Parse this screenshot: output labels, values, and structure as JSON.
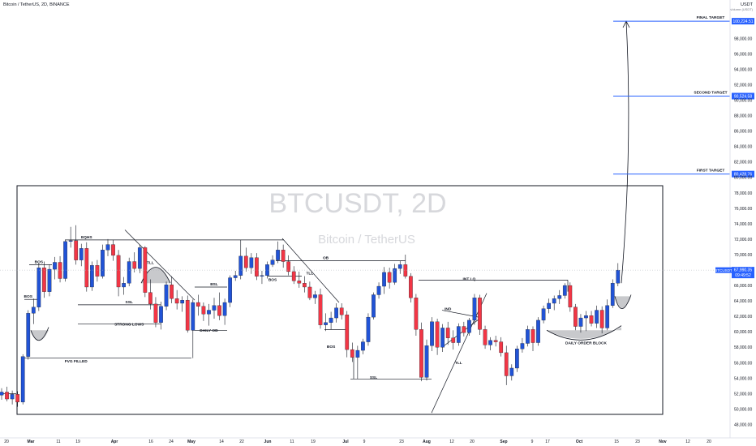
{
  "header": {
    "symbol_title": "Bitcoin / TetherUS, 2D, BINANCE"
  },
  "currency": {
    "label": "USDT",
    "sublabel": "Volume (USDT)"
  },
  "watermark": {
    "main": "BTCUSDT, 2D",
    "sub": "Bitcoin / TetherUS"
  },
  "chart_data": {
    "type": "candlestick",
    "title": "Bitcoin / TetherUS, 2D, BINANCE",
    "ylim": [
      47000,
      101500
    ],
    "y_ticks": [
      48000,
      50000,
      52000,
      54000,
      56000,
      58000,
      60000,
      62000,
      64000,
      66000,
      68000,
      70000,
      72000,
      74000,
      76000,
      78000,
      80000,
      82000,
      84000,
      86000,
      88000,
      90000,
      92000,
      94000,
      96000,
      98000
    ],
    "y_tick_labels": [
      "48,000.00",
      "50,000.00",
      "52,000.00",
      "54,000.00",
      "56,000.00",
      "58,000.00",
      "60,000.00",
      "62,000.00",
      "64,000.00",
      "66,000.00",
      "68,000.00",
      "70,000.00",
      "72,000.00",
      "74,000.00",
      "76,000.00",
      "78,000.00",
      "80,000.00",
      "82,000.00",
      "84,000.00",
      "86,000.00",
      "88,000.00",
      "90,000.00",
      "92,000.00",
      "94,000.00",
      "96,000.00",
      "98,000.00"
    ],
    "x_ticks": [
      "20",
      "Mar",
      "11",
      "19",
      "Apr",
      "16",
      "24",
      "May",
      "14",
      "22",
      "Jun",
      "11",
      "19",
      "Jul",
      "9",
      "23",
      "Aug",
      "12",
      "20",
      "Sep",
      "9",
      "17",
      "Oct",
      "15",
      "23",
      "Nov",
      "12",
      "20"
    ],
    "candles": [
      {
        "o": 51800,
        "h": 52700,
        "l": 51200,
        "c": 52200
      },
      {
        "o": 52200,
        "h": 52900,
        "l": 51000,
        "c": 51300
      },
      {
        "o": 51300,
        "h": 52400,
        "l": 50600,
        "c": 51900
      },
      {
        "o": 51900,
        "h": 52300,
        "l": 50300,
        "c": 50900
      },
      {
        "o": 50900,
        "h": 57100,
        "l": 50600,
        "c": 56800
      },
      {
        "o": 56800,
        "h": 62800,
        "l": 56400,
        "c": 62400
      },
      {
        "o": 62400,
        "h": 64300,
        "l": 61000,
        "c": 63200
      },
      {
        "o": 63200,
        "h": 68900,
        "l": 62700,
        "c": 68300
      },
      {
        "o": 68300,
        "h": 69100,
        "l": 64400,
        "c": 65200
      },
      {
        "o": 65200,
        "h": 68700,
        "l": 64600,
        "c": 68100
      },
      {
        "o": 68100,
        "h": 69700,
        "l": 66800,
        "c": 69000
      },
      {
        "o": 69000,
        "h": 69800,
        "l": 66400,
        "c": 66900
      },
      {
        "o": 66900,
        "h": 71900,
        "l": 66500,
        "c": 71700
      },
      {
        "o": 71700,
        "h": 73600,
        "l": 70900,
        "c": 71800
      },
      {
        "o": 71800,
        "h": 73800,
        "l": 68700,
        "c": 69300
      },
      {
        "o": 69300,
        "h": 71400,
        "l": 68500,
        "c": 70800
      },
      {
        "o": 70800,
        "h": 71600,
        "l": 65200,
        "c": 65800
      },
      {
        "o": 65800,
        "h": 69100,
        "l": 65300,
        "c": 68600
      },
      {
        "o": 68600,
        "h": 69300,
        "l": 66500,
        "c": 67200
      },
      {
        "o": 67200,
        "h": 71300,
        "l": 66900,
        "c": 70600
      },
      {
        "o": 70600,
        "h": 72000,
        "l": 69800,
        "c": 71300
      },
      {
        "o": 71300,
        "h": 71900,
        "l": 69200,
        "c": 69900
      },
      {
        "o": 69900,
        "h": 70600,
        "l": 64600,
        "c": 65800
      },
      {
        "o": 65800,
        "h": 67100,
        "l": 64800,
        "c": 66300
      },
      {
        "o": 66300,
        "h": 69600,
        "l": 65900,
        "c": 69100
      },
      {
        "o": 69100,
        "h": 70300,
        "l": 67700,
        "c": 68200
      },
      {
        "o": 68200,
        "h": 71300,
        "l": 67600,
        "c": 70900
      },
      {
        "o": 70900,
        "h": 71100,
        "l": 64500,
        "c": 65100
      },
      {
        "o": 65100,
        "h": 66800,
        "l": 62900,
        "c": 63600
      },
      {
        "o": 63600,
        "h": 64500,
        "l": 60600,
        "c": 61200
      },
      {
        "o": 61200,
        "h": 63900,
        "l": 60300,
        "c": 63300
      },
      {
        "o": 63300,
        "h": 66500,
        "l": 62800,
        "c": 66100
      },
      {
        "o": 66100,
        "h": 67200,
        "l": 63700,
        "c": 64300
      },
      {
        "o": 64300,
        "h": 65400,
        "l": 62900,
        "c": 63700
      },
      {
        "o": 63700,
        "h": 64600,
        "l": 62600,
        "c": 64100
      },
      {
        "o": 64100,
        "h": 64700,
        "l": 59900,
        "c": 60200
      },
      {
        "o": 60200,
        "h": 64200,
        "l": 56600,
        "c": 63800
      },
      {
        "o": 63800,
        "h": 64800,
        "l": 62100,
        "c": 63300
      },
      {
        "o": 63300,
        "h": 63800,
        "l": 61400,
        "c": 62300
      },
      {
        "o": 62300,
        "h": 63600,
        "l": 60800,
        "c": 62800
      },
      {
        "o": 62800,
        "h": 64400,
        "l": 61700,
        "c": 63400
      },
      {
        "o": 63400,
        "h": 65100,
        "l": 61500,
        "c": 62100
      },
      {
        "o": 62100,
        "h": 64300,
        "l": 60900,
        "c": 63800
      },
      {
        "o": 63800,
        "h": 67300,
        "l": 63200,
        "c": 67000
      },
      {
        "o": 67000,
        "h": 67900,
        "l": 66600,
        "c": 67300
      },
      {
        "o": 67300,
        "h": 71900,
        "l": 66800,
        "c": 69800
      },
      {
        "o": 69800,
        "h": 70900,
        "l": 67800,
        "c": 68300
      },
      {
        "o": 68300,
        "h": 70200,
        "l": 67500,
        "c": 69600
      },
      {
        "o": 69600,
        "h": 70200,
        "l": 66700,
        "c": 67200
      },
      {
        "o": 67200,
        "h": 67900,
        "l": 66200,
        "c": 67300
      },
      {
        "o": 67300,
        "h": 69100,
        "l": 66900,
        "c": 68700
      },
      {
        "o": 68700,
        "h": 69900,
        "l": 68400,
        "c": 69300
      },
      {
        "o": 69300,
        "h": 71700,
        "l": 68900,
        "c": 70600
      },
      {
        "o": 70600,
        "h": 71300,
        "l": 68300,
        "c": 69100
      },
      {
        "o": 69100,
        "h": 69900,
        "l": 67300,
        "c": 67800
      },
      {
        "o": 67800,
        "h": 68500,
        "l": 66200,
        "c": 66600
      },
      {
        "o": 66600,
        "h": 67800,
        "l": 65700,
        "c": 66300
      },
      {
        "o": 66300,
        "h": 67200,
        "l": 65100,
        "c": 65800
      },
      {
        "o": 65800,
        "h": 66500,
        "l": 64100,
        "c": 64400
      },
      {
        "o": 64400,
        "h": 65300,
        "l": 63600,
        "c": 64800
      },
      {
        "o": 64800,
        "h": 65600,
        "l": 60400,
        "c": 60900
      },
      {
        "o": 60900,
        "h": 62400,
        "l": 60100,
        "c": 61200
      },
      {
        "o": 61200,
        "h": 62600,
        "l": 60300,
        "c": 61800
      },
      {
        "o": 61800,
        "h": 63700,
        "l": 61200,
        "c": 63100
      },
      {
        "o": 63100,
        "h": 63700,
        "l": 61600,
        "c": 62200
      },
      {
        "o": 62200,
        "h": 62700,
        "l": 56700,
        "c": 57700
      },
      {
        "o": 57700,
        "h": 58600,
        "l": 56100,
        "c": 56700
      },
      {
        "o": 56700,
        "h": 58200,
        "l": 53900,
        "c": 57600
      },
      {
        "o": 57600,
        "h": 59100,
        "l": 57100,
        "c": 58700
      },
      {
        "o": 58700,
        "h": 62400,
        "l": 58200,
        "c": 61900
      },
      {
        "o": 61900,
        "h": 65100,
        "l": 61600,
        "c": 64800
      },
      {
        "o": 64800,
        "h": 66400,
        "l": 64300,
        "c": 65900
      },
      {
        "o": 65900,
        "h": 68400,
        "l": 64900,
        "c": 67700
      },
      {
        "o": 67700,
        "h": 68300,
        "l": 65600,
        "c": 66400
      },
      {
        "o": 66400,
        "h": 68800,
        "l": 66100,
        "c": 68200
      },
      {
        "o": 68200,
        "h": 69200,
        "l": 67500,
        "c": 68700
      },
      {
        "o": 68700,
        "h": 70000,
        "l": 66900,
        "c": 67200
      },
      {
        "o": 67200,
        "h": 67600,
        "l": 63800,
        "c": 64400
      },
      {
        "o": 64400,
        "h": 64900,
        "l": 59500,
        "c": 60300
      },
      {
        "o": 60300,
        "h": 61200,
        "l": 53600,
        "c": 54100
      },
      {
        "o": 54100,
        "h": 59000,
        "l": 53700,
        "c": 58200
      },
      {
        "o": 58200,
        "h": 61900,
        "l": 57500,
        "c": 61300
      },
      {
        "o": 61300,
        "h": 61700,
        "l": 57000,
        "c": 58000
      },
      {
        "o": 58000,
        "h": 61000,
        "l": 57400,
        "c": 60500
      },
      {
        "o": 60500,
        "h": 61300,
        "l": 58300,
        "c": 59200
      },
      {
        "o": 59200,
        "h": 60200,
        "l": 57700,
        "c": 58600
      },
      {
        "o": 58600,
        "h": 61100,
        "l": 58200,
        "c": 60700
      },
      {
        "o": 60700,
        "h": 61300,
        "l": 59400,
        "c": 59900
      },
      {
        "o": 59900,
        "h": 61800,
        "l": 59500,
        "c": 61500
      },
      {
        "o": 61500,
        "h": 64900,
        "l": 60900,
        "c": 64400
      },
      {
        "o": 64400,
        "h": 64800,
        "l": 59600,
        "c": 60300
      },
      {
        "o": 60300,
        "h": 60800,
        "l": 57800,
        "c": 58300
      },
      {
        "o": 58300,
        "h": 59300,
        "l": 57600,
        "c": 58900
      },
      {
        "o": 58900,
        "h": 59500,
        "l": 58100,
        "c": 58700
      },
      {
        "o": 58700,
        "h": 59300,
        "l": 56800,
        "c": 57300
      },
      {
        "o": 57300,
        "h": 58200,
        "l": 53100,
        "c": 54300
      },
      {
        "o": 54300,
        "h": 55800,
        "l": 53700,
        "c": 55300
      },
      {
        "o": 55300,
        "h": 58200,
        "l": 54800,
        "c": 57800
      },
      {
        "o": 57800,
        "h": 59200,
        "l": 57300,
        "c": 58500
      },
      {
        "o": 58500,
        "h": 60800,
        "l": 58100,
        "c": 60300
      },
      {
        "o": 60300,
        "h": 60700,
        "l": 57500,
        "c": 58600
      },
      {
        "o": 58600,
        "h": 61900,
        "l": 58200,
        "c": 61500
      },
      {
        "o": 61500,
        "h": 63400,
        "l": 61100,
        "c": 63000
      },
      {
        "o": 63000,
        "h": 64300,
        "l": 62400,
        "c": 63700
      },
      {
        "o": 63700,
        "h": 64700,
        "l": 62800,
        "c": 64300
      },
      {
        "o": 64300,
        "h": 65400,
        "l": 63600,
        "c": 64700
      },
      {
        "o": 64700,
        "h": 66300,
        "l": 64300,
        "c": 66000
      },
      {
        "o": 66000,
        "h": 66400,
        "l": 62600,
        "c": 63200
      },
      {
        "o": 63200,
        "h": 63600,
        "l": 60200,
        "c": 60700
      },
      {
        "o": 60700,
        "h": 62300,
        "l": 59900,
        "c": 61800
      },
      {
        "o": 61800,
        "h": 62700,
        "l": 60100,
        "c": 62100
      },
      {
        "o": 62100,
        "h": 62700,
        "l": 60700,
        "c": 61100
      },
      {
        "o": 61100,
        "h": 63400,
        "l": 60500,
        "c": 62800
      },
      {
        "o": 62800,
        "h": 63300,
        "l": 59800,
        "c": 60500
      },
      {
        "o": 60500,
        "h": 64200,
        "l": 60200,
        "c": 63400
      },
      {
        "o": 63400,
        "h": 66800,
        "l": 63100,
        "c": 66300
      },
      {
        "o": 66300,
        "h": 68900,
        "l": 65900,
        "c": 67990
      }
    ],
    "price_levels": [
      {
        "label": "FINAL TARGET",
        "tag": "100,224.51",
        "value": 100224.51
      },
      {
        "label": "SECOND TARGET",
        "tag": "90,524.58",
        "value": 90524.58
      },
      {
        "label": "FIRST TARGET",
        "tag": "80,428.76",
        "value": 80428.76
      }
    ],
    "current_price": {
      "symbol": "BTCUSDT",
      "price": "67,990.35",
      "countdown": "09:49:52",
      "value": 67990.35
    },
    "annotations": [
      {
        "text": "BOS",
        "i": 7,
        "y": 68700
      },
      {
        "text": "BOS",
        "i": 5,
        "y": 64200
      },
      {
        "text": "EQHS",
        "i": 16,
        "y": 71900
      },
      {
        "text": "TLL",
        "i": 28,
        "y": 68600
      },
      {
        "text": "SSL",
        "i": 24,
        "y": 63500
      },
      {
        "text": "STRONG LOWS",
        "i": 24,
        "y": 60600
      },
      {
        "text": "BSL",
        "i": 40,
        "y": 65800
      },
      {
        "text": "DAILY OB",
        "i": 39,
        "y": 59800
      },
      {
        "text": "FVG FILLED",
        "i": 14,
        "y": 55800
      },
      {
        "text": "OB",
        "i": 61,
        "y": 69200
      },
      {
        "text": "BOS",
        "i": 51,
        "y": 66400
      },
      {
        "text": "TLL",
        "i": 58,
        "y": 67200
      },
      {
        "text": "BOS",
        "i": 62,
        "y": 57700
      },
      {
        "text": "SSL",
        "i": 70,
        "y": 53700
      },
      {
        "text": "INT LQ",
        "i": 88,
        "y": 66500
      },
      {
        "text": "IND",
        "i": 84,
        "y": 62600
      },
      {
        "text": "TLL",
        "i": 86,
        "y": 55600
      },
      {
        "text": "DAILY ORDER BLOCK",
        "i": 110,
        "y": 58200
      }
    ]
  }
}
